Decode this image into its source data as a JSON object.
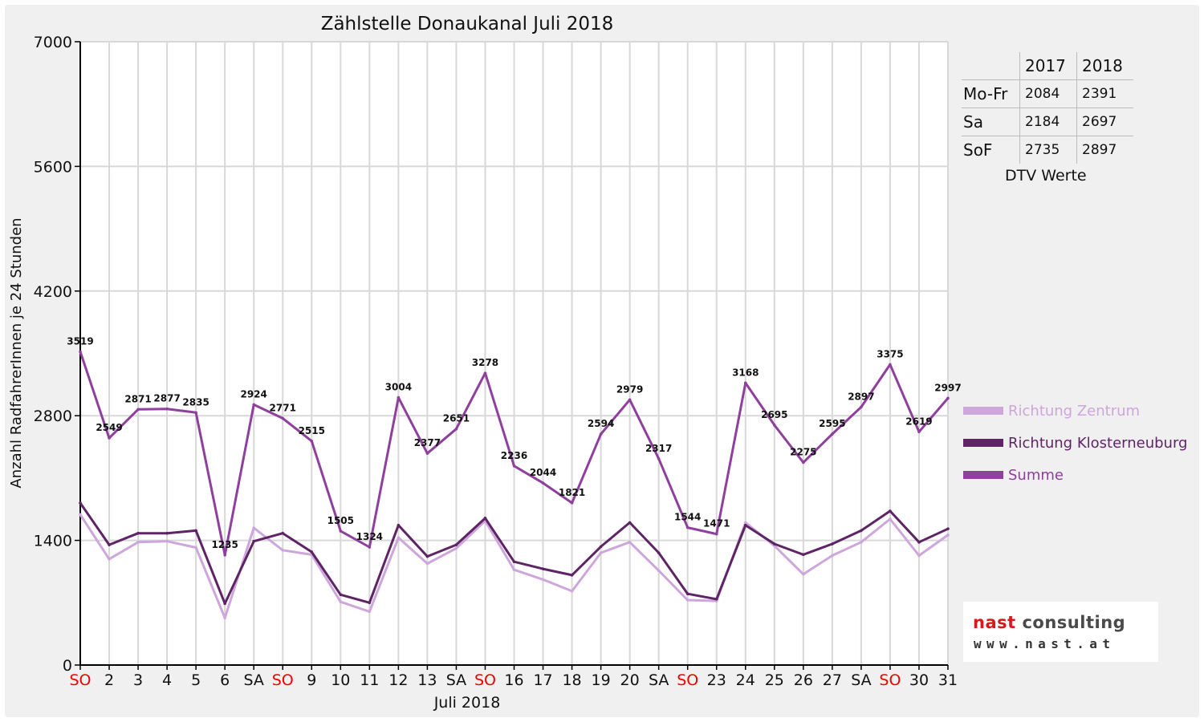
{
  "chart_data": {
    "type": "line",
    "title": "Zählstelle Donaukanal Juli 2018",
    "xlabel": "Juli 2018",
    "ylabel": "Anzahl RadfahrerInnen je 24 Stunden",
    "ylim": [
      0,
      7000
    ],
    "yticks": [
      0,
      1400,
      2800,
      4200,
      5600,
      7000
    ],
    "grid": true,
    "legend_position": "right",
    "categories": [
      "SO",
      "2",
      "3",
      "4",
      "5",
      "6",
      "SA",
      "SO",
      "9",
      "10",
      "11",
      "12",
      "13",
      "SA",
      "SO",
      "16",
      "17",
      "18",
      "19",
      "20",
      "SA",
      "SO",
      "23",
      "24",
      "25",
      "26",
      "27",
      "SA",
      "SO",
      "30",
      "31"
    ],
    "category_colors": [
      "#ee0000",
      "#111111",
      "#111111",
      "#111111",
      "#111111",
      "#111111",
      "#111111",
      "#ee0000",
      "#111111",
      "#111111",
      "#111111",
      "#111111",
      "#111111",
      "#111111",
      "#ee0000",
      "#111111",
      "#111111",
      "#111111",
      "#111111",
      "#111111",
      "#111111",
      "#ee0000",
      "#111111",
      "#111111",
      "#111111",
      "#111111",
      "#111111",
      "#111111",
      "#ee0000",
      "#111111",
      "#111111"
    ],
    "series": [
      {
        "name": "Richtung Zentrum",
        "color": "#cda6db",
        "values": [
          1690,
          1190,
          1380,
          1390,
          1320,
          530,
          1540,
          1290,
          1240,
          710,
          600,
          1430,
          1140,
          1310,
          1620,
          1070,
          960,
          830,
          1260,
          1380,
          1060,
          730,
          720,
          1600,
          1340,
          1020,
          1230,
          1380,
          1640,
          1230,
          1460
        ]
      },
      {
        "name": "Richtung Klosterneuburg",
        "color": "#5e2465",
        "values": [
          1820,
          1350,
          1480,
          1480,
          1510,
          690,
          1390,
          1480,
          1270,
          790,
          700,
          1570,
          1220,
          1350,
          1650,
          1160,
          1080,
          1010,
          1330,
          1600,
          1260,
          800,
          740,
          1570,
          1360,
          1240,
          1360,
          1510,
          1730,
          1380,
          1530
        ]
      },
      {
        "name": "Summe",
        "color": "#8f3f9d",
        "values": [
          3519,
          2549,
          2871,
          2877,
          2835,
          1235,
          2924,
          2771,
          2515,
          1505,
          1324,
          3004,
          2377,
          2651,
          3278,
          2236,
          2044,
          1821,
          2594,
          2979,
          2317,
          1544,
          1471,
          3168,
          2695,
          2275,
          2595,
          2897,
          3375,
          2619,
          2997
        ],
        "data_labels": [
          "3519",
          "2549",
          "2871",
          "2877",
          "2835",
          "1235",
          "2924",
          "2771",
          "2515",
          "1505",
          "1324",
          "3004",
          "2377",
          "2651",
          "3278",
          "2236",
          "2044",
          "1821",
          "2594",
          "2979",
          "2317",
          "1544",
          "1471",
          "3168",
          "2695",
          "2275",
          "2595",
          "2897",
          "3375",
          "2619",
          "2997"
        ]
      }
    ]
  },
  "dtv_table": {
    "headers": [
      "2017",
      "2018"
    ],
    "rows": [
      {
        "label": "Mo-Fr",
        "v2017": "2084",
        "v2018": "2391"
      },
      {
        "label": "Sa",
        "v2017": "2184",
        "v2018": "2697"
      },
      {
        "label": "SoF",
        "v2017": "2735",
        "v2018": "2897"
      }
    ],
    "caption": "DTV Werte"
  },
  "legend": [
    {
      "name": "Richtung Zentrum",
      "color": "#cda6db"
    },
    {
      "name": "Richtung Klosterneuburg",
      "color": "#5e2465"
    },
    {
      "name": "Summe",
      "color": "#8f3f9d"
    }
  ],
  "logo": {
    "line1a": "nast",
    "line1b": "consulting",
    "line2": "www.nast.at"
  }
}
